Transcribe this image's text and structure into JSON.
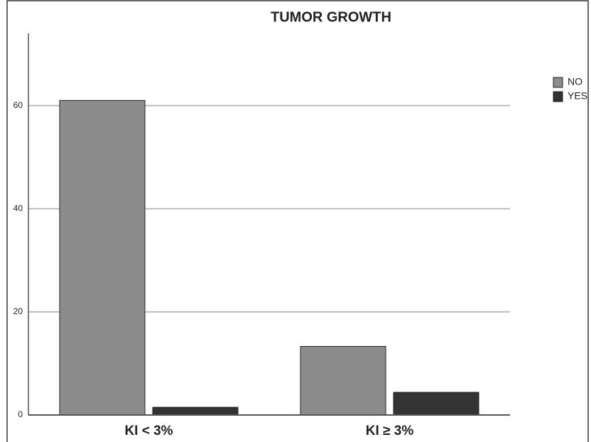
{
  "chart_data": {
    "type": "bar",
    "title": "TUMOR GROWTH",
    "categories": [
      "KI < 3%",
      "KI ≥ 3%"
    ],
    "series": [
      {
        "name": "NO",
        "color": "#8c8c8c",
        "values": [
          61,
          13.3
        ]
      },
      {
        "name": "YES",
        "color": "#333333",
        "values": [
          1.5,
          4.4
        ]
      }
    ],
    "ylim": [
      0,
      74
    ],
    "yticks": [
      0,
      20,
      40,
      60
    ],
    "grid": true
  }
}
